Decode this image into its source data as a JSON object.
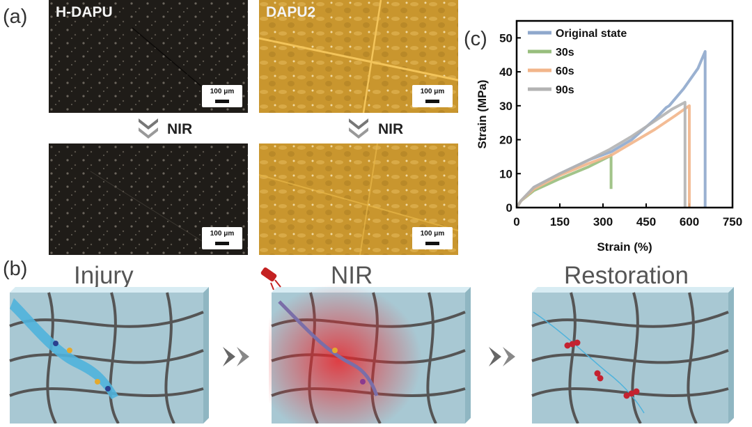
{
  "panel_labels": {
    "a": "(a)",
    "b": "(b)",
    "c": "(c)"
  },
  "panel_a": {
    "samples": [
      {
        "name": "H-DAPU"
      },
      {
        "name": "DAPU2"
      }
    ],
    "scale_bar": "100 μm",
    "stimulus": "NIR",
    "colors": {
      "hdapu": "#1f1c18",
      "dapu2": "#c9962e"
    }
  },
  "panel_b": {
    "stages": [
      "Injury",
      "NIR",
      "Restoration"
    ]
  },
  "chart_data": {
    "type": "line",
    "xlabel": "Strain (%)",
    "ylabel": "Strain (MPa)",
    "xlim": [
      0,
      750
    ],
    "ylim": [
      0,
      55
    ],
    "xticks": [
      0,
      150,
      300,
      450,
      600,
      750
    ],
    "yticks": [
      0,
      10,
      20,
      30,
      40,
      50
    ],
    "legend_position": "top-left",
    "grid": false,
    "series": [
      {
        "name": "Original state",
        "color": "#8fa8cc",
        "x": [
          0,
          15,
          60,
          150,
          250,
          330,
          400,
          480,
          520,
          530,
          580,
          630,
          655,
          655
        ],
        "y": [
          0,
          2,
          6,
          10,
          14,
          16.5,
          20,
          26,
          29.5,
          30,
          35,
          41,
          46,
          0
        ]
      },
      {
        "name": "30s",
        "color": "#98be7d",
        "x": [
          0,
          15,
          60,
          150,
          250,
          320,
          328,
          328
        ],
        "y": [
          0,
          2,
          5,
          8.5,
          12,
          15,
          15.5,
          5.5
        ]
      },
      {
        "name": "60s",
        "color": "#f2b58a",
        "x": [
          0,
          15,
          60,
          150,
          250,
          330,
          400,
          480,
          550,
          600,
          600
        ],
        "y": [
          0,
          2,
          5.5,
          9.5,
          13,
          15.5,
          19,
          23,
          27,
          30,
          0
        ]
      },
      {
        "name": "90s",
        "color": "#b3b3b3",
        "x": [
          0,
          15,
          60,
          150,
          250,
          320,
          400,
          480,
          540,
          585,
          585
        ],
        "y": [
          0,
          2,
          6,
          10,
          14,
          17,
          21,
          25.5,
          29,
          31,
          0
        ]
      }
    ]
  }
}
